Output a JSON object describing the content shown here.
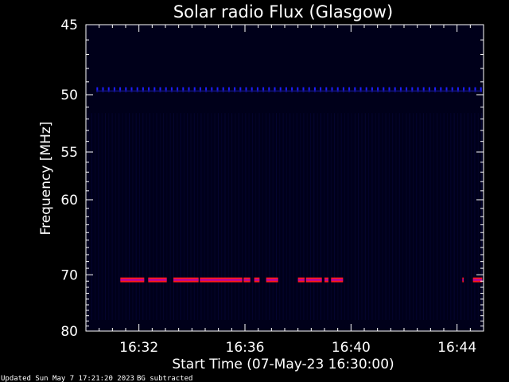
{
  "chart_data": {
    "type": "heatmap",
    "title": "Solar radio Flux (Glasgow)",
    "xlabel": "Start Time (07-May-23 16:30:00)",
    "ylabel": "Frequency [MHz]",
    "x_ticks": [
      "16:32",
      "16:36",
      "16:40",
      "16:44"
    ],
    "x_tick_minutes": [
      2,
      6,
      10,
      14
    ],
    "xlim_minutes": [
      0,
      15
    ],
    "y_ticks": [
      45,
      50,
      55,
      60,
      70,
      80
    ],
    "ylim": [
      45,
      80
    ],
    "y_scale": "reciprocal",
    "grid": false,
    "colors": {
      "background": "#000000",
      "plot_background": "#00001a",
      "axes": "#ffffff",
      "band_50mhz": "#1e1eff",
      "band_70mhz_edge": "#ff1a1a",
      "band_70mhz_core": "#b000b0"
    },
    "bands": [
      {
        "freq_mhz": 49.6,
        "intensity": "moderate",
        "segments_minutes": [
          [
            0.4,
            14.9
          ]
        ]
      },
      {
        "freq_mhz": 70.8,
        "intensity": "high",
        "segments_minutes": [
          [
            1.3,
            2.2
          ],
          [
            2.35,
            3.05
          ],
          [
            3.3,
            4.25
          ],
          [
            4.3,
            5.9
          ],
          [
            5.95,
            6.2
          ],
          [
            6.35,
            6.55
          ],
          [
            6.8,
            7.25
          ],
          [
            8.0,
            8.25
          ],
          [
            8.3,
            8.9
          ],
          [
            9.0,
            9.15
          ],
          [
            9.25,
            9.7
          ],
          [
            14.2,
            14.25
          ],
          [
            14.6,
            14.95
          ]
        ]
      }
    ]
  },
  "footer": {
    "updated": "Updated Sun May  7 17:21:20 2023",
    "note": "BG subtracted"
  }
}
